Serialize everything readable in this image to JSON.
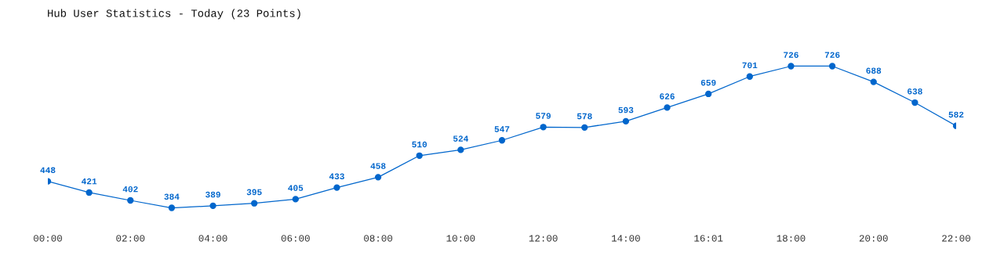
{
  "chart_data": {
    "type": "line",
    "title": "Hub User Statistics - Today (23 Points)",
    "categories": [
      "00:00",
      null,
      "02:00",
      null,
      "04:00",
      null,
      "06:00",
      null,
      "08:00",
      null,
      "10:00",
      null,
      "12:00",
      null,
      "14:00",
      null,
      "16:01",
      null,
      "18:00",
      null,
      "20:00",
      null,
      "22:00"
    ],
    "values": [
      448,
      421,
      402,
      384,
      389,
      395,
      405,
      433,
      458,
      510,
      524,
      547,
      579,
      578,
      593,
      626,
      659,
      701,
      726,
      726,
      688,
      638,
      582
    ],
    "color": "#0066cc",
    "marker": "circle",
    "line_style": "solid",
    "data_labels": true,
    "grid": false,
    "legend": false
  }
}
